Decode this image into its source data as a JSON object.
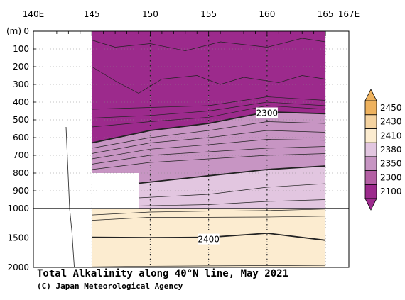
{
  "chart_data": {
    "type": "heatmap",
    "title": "Total Alkalinity along 40°N line, May 2021",
    "credit": "(C) Japan Meteorological Agency",
    "ylabel": "(m)",
    "x_ticks": [
      {
        "value": 140,
        "label": "140E"
      },
      {
        "value": 145,
        "label": "145"
      },
      {
        "value": 150,
        "label": "150"
      },
      {
        "value": 155,
        "label": "155"
      },
      {
        "value": 160,
        "label": "160"
      },
      {
        "value": 165,
        "label": "165"
      },
      {
        "value": 167,
        "label": "167E"
      }
    ],
    "y_ticks": [
      {
        "value": 0,
        "label": "0"
      },
      {
        "value": 100,
        "label": "100"
      },
      {
        "value": 200,
        "label": "200"
      },
      {
        "value": 300,
        "label": "300"
      },
      {
        "value": 400,
        "label": "400"
      },
      {
        "value": 500,
        "label": "500"
      },
      {
        "value": 600,
        "label": "600"
      },
      {
        "value": 700,
        "label": "700"
      },
      {
        "value": 800,
        "label": "800"
      },
      {
        "value": 900,
        "label": "900"
      },
      {
        "value": 1000,
        "label": "1000"
      },
      {
        "value": 1500,
        "label": "1500"
      },
      {
        "value": 2000,
        "label": "2000"
      }
    ],
    "xlim": [
      140,
      167
    ],
    "ylim_upper": [
      0,
      1000
    ],
    "ylim_lower": [
      1000,
      2000
    ],
    "colorbar": {
      "levels": [
        "2100",
        "2300",
        "2350",
        "2380",
        "2410",
        "2430",
        "2450"
      ],
      "colors": [
        "#9c2a8c",
        "#b460a4",
        "#c795c3",
        "#e2c6e0",
        "#fcecd0",
        "#f5d3a0",
        "#eeb25e"
      ],
      "extend": "both"
    },
    "contour_labels": [
      {
        "value": "2300",
        "lon": 160,
        "depth": 462
      },
      {
        "value": "2400",
        "lon": 155,
        "depth": 1525
      }
    ],
    "regions": [
      {
        "color": "#9c2a8c",
        "points": [
          [
            145,
            0
          ],
          [
            165,
            0
          ],
          [
            165,
            465
          ],
          [
            160,
            455
          ],
          [
            155,
            520
          ],
          [
            150,
            560
          ],
          [
            145,
            630
          ]
        ]
      },
      {
        "color": "#c795c3",
        "points": [
          [
            145,
            630
          ],
          [
            150,
            560
          ],
          [
            155,
            520
          ],
          [
            160,
            455
          ],
          [
            165,
            465
          ],
          [
            165,
            760
          ],
          [
            160,
            780
          ],
          [
            155,
            815
          ],
          [
            149,
            858
          ],
          [
            149,
            800
          ],
          [
            145,
            800
          ]
        ]
      },
      {
        "color": "#e2c6e0",
        "points": [
          [
            149,
            858
          ],
          [
            155,
            815
          ],
          [
            160,
            780
          ],
          [
            165,
            760
          ],
          [
            165,
            1000
          ],
          [
            149,
            1000
          ]
        ]
      },
      {
        "color": "#fcecd0",
        "points": [
          [
            145,
            1000
          ],
          [
            165,
            1000
          ],
          [
            165,
            2000
          ],
          [
            145,
            2000
          ]
        ]
      }
    ],
    "contours": [
      {
        "bold": false,
        "points": [
          [
            145,
            50
          ],
          [
            147,
            90
          ],
          [
            150,
            70
          ],
          [
            153,
            110
          ],
          [
            156,
            60
          ],
          [
            160,
            90
          ],
          [
            163,
            40
          ],
          [
            165,
            60
          ]
        ]
      },
      {
        "bold": false,
        "points": [
          [
            145,
            200
          ],
          [
            147,
            280
          ],
          [
            149,
            350
          ],
          [
            151,
            270
          ],
          [
            154,
            250
          ],
          [
            156,
            300
          ],
          [
            158,
            260
          ],
          [
            161,
            290
          ],
          [
            163,
            250
          ],
          [
            165,
            270
          ]
        ]
      },
      {
        "bold": false,
        "points": [
          [
            145,
            440
          ],
          [
            150,
            430
          ],
          [
            155,
            420
          ],
          [
            160,
            370
          ],
          [
            165,
            390
          ]
        ]
      },
      {
        "bold": false,
        "points": [
          [
            145,
            490
          ],
          [
            150,
            475
          ],
          [
            155,
            450
          ],
          [
            160,
            400
          ],
          [
            165,
            420
          ]
        ]
      },
      {
        "bold": false,
        "points": [
          [
            145,
            540
          ],
          [
            150,
            510
          ],
          [
            155,
            485
          ],
          [
            160,
            420
          ],
          [
            165,
            440
          ]
        ]
      },
      {
        "bold": true,
        "points": [
          [
            145,
            630
          ],
          [
            150,
            560
          ],
          [
            155,
            520
          ],
          [
            160,
            455
          ],
          [
            165,
            465
          ]
        ]
      },
      {
        "bold": false,
        "points": [
          [
            145,
            660
          ],
          [
            150,
            600
          ],
          [
            155,
            560
          ],
          [
            160,
            510
          ],
          [
            165,
            520
          ]
        ]
      },
      {
        "bold": false,
        "points": [
          [
            145,
            690
          ],
          [
            150,
            630
          ],
          [
            155,
            600
          ],
          [
            160,
            560
          ],
          [
            165,
            570
          ]
        ]
      },
      {
        "bold": false,
        "points": [
          [
            145,
            720
          ],
          [
            150,
            665
          ],
          [
            155,
            640
          ],
          [
            160,
            610
          ],
          [
            165,
            615
          ]
        ]
      },
      {
        "bold": false,
        "points": [
          [
            145,
            750
          ],
          [
            150,
            700
          ],
          [
            155,
            680
          ],
          [
            160,
            660
          ],
          [
            165,
            650
          ]
        ]
      },
      {
        "bold": false,
        "points": [
          [
            145,
            780
          ],
          [
            150,
            740
          ],
          [
            155,
            720
          ],
          [
            160,
            700
          ],
          [
            165,
            690
          ]
        ]
      },
      {
        "bold": true,
        "points": [
          [
            149,
            858
          ],
          [
            155,
            815
          ],
          [
            160,
            780
          ],
          [
            165,
            760
          ]
        ]
      },
      {
        "bold": false,
        "points": [
          [
            149,
            940
          ],
          [
            155,
            920
          ],
          [
            160,
            880
          ],
          [
            165,
            860
          ]
        ]
      },
      {
        "bold": false,
        "points": [
          [
            149,
            985
          ],
          [
            155,
            978
          ],
          [
            160,
            960
          ],
          [
            165,
            950
          ]
        ]
      },
      {
        "bold": false,
        "points": [
          [
            145,
            1110
          ],
          [
            150,
            1060
          ],
          [
            155,
            1045
          ],
          [
            160,
            1035
          ],
          [
            165,
            1010
          ]
        ]
      },
      {
        "bold": false,
        "points": [
          [
            145,
            1200
          ],
          [
            150,
            1150
          ],
          [
            155,
            1150
          ],
          [
            160,
            1145
          ],
          [
            165,
            1130
          ]
        ]
      },
      {
        "bold": true,
        "points": [
          [
            145,
            1490
          ],
          [
            150,
            1495
          ],
          [
            155,
            1490
          ],
          [
            159,
            1435
          ],
          [
            160,
            1420
          ],
          [
            165,
            1540
          ]
        ]
      },
      {
        "bold": false,
        "points": [
          [
            145,
            1990
          ],
          [
            150,
            1980
          ],
          [
            155,
            1975
          ],
          [
            160,
            1970
          ],
          [
            165,
            1965
          ]
        ]
      }
    ],
    "bathymetry": [
      [
        142.8,
        540
      ],
      [
        143.1,
        1000
      ],
      [
        143.3,
        1400
      ],
      [
        143.4,
        1700
      ],
      [
        143.5,
        2000
      ]
    ],
    "station_lons": [
      150,
      155,
      160
    ]
  }
}
